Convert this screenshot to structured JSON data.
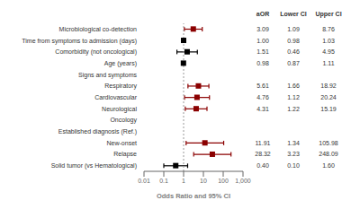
{
  "chart_data": {
    "type": "forest",
    "xlabel": "Odds Ratio and 95% CI",
    "categories": [
      "Microbiological co-detection",
      "Time from symptoms to admission (days)",
      "Comorbidity (not oncological)",
      "Age (years)",
      "Signs and symptoms",
      "Respiratory",
      "Cardiovascular",
      "Neurological",
      "Oncology",
      "Established diagnosis (Ref.)",
      "New-onset",
      "Relapse",
      "Solid tumor (vs Hematological)"
    ],
    "values": [
      3.09,
      1.0,
      1.51,
      0.98,
      null,
      5.61,
      4.76,
      4.31,
      null,
      null,
      11.91,
      28.32,
      0.4
    ],
    "value_labels": [
      "3.09",
      "1.00",
      "1.51",
      "0.98",
      null,
      "5.61",
      "4.76",
      "4.31",
      null,
      null,
      "11.91",
      "28.32",
      "0.40"
    ],
    "lo": [
      1.09,
      0.98,
      0.46,
      0.87,
      null,
      1.66,
      1.12,
      1.22,
      null,
      null,
      1.34,
      3.23,
      0.1
    ],
    "lo_labels": [
      "1.09",
      "0.98",
      "0.46",
      "0.87",
      null,
      "1.66",
      "1.12",
      "1.22",
      null,
      null,
      "1.34",
      "3.23",
      "0.10"
    ],
    "hi": [
      8.76,
      1.03,
      4.95,
      1.11,
      null,
      18.92,
      20.24,
      15.19,
      null,
      null,
      105.98,
      248.09,
      1.6
    ],
    "hi_labels": [
      "8.76",
      "1.03",
      "4.95",
      "1.11",
      null,
      "18.92",
      "20.24",
      "15.19",
      null,
      null,
      "105.98",
      "248.09",
      "1.60"
    ],
    "colors": [
      "#8B0000",
      "#000000",
      "#000000",
      "#000000",
      "#000000",
      "#8B0000",
      "#8B0000",
      "#8B0000",
      "#000000",
      "#000000",
      "#8B0000",
      "#8B0000",
      "#000000"
    ],
    "table_headers": [
      "aOR",
      "Lower CI",
      "Upper CI"
    ],
    "xlim": [
      0.01,
      1000
    ],
    "xticks": [
      0.01,
      0.1,
      1,
      10,
      100,
      {
        "value": 1000,
        "label": "1,000"
      }
    ],
    "log": "x",
    "ref_line": 1,
    "grid": false
  }
}
